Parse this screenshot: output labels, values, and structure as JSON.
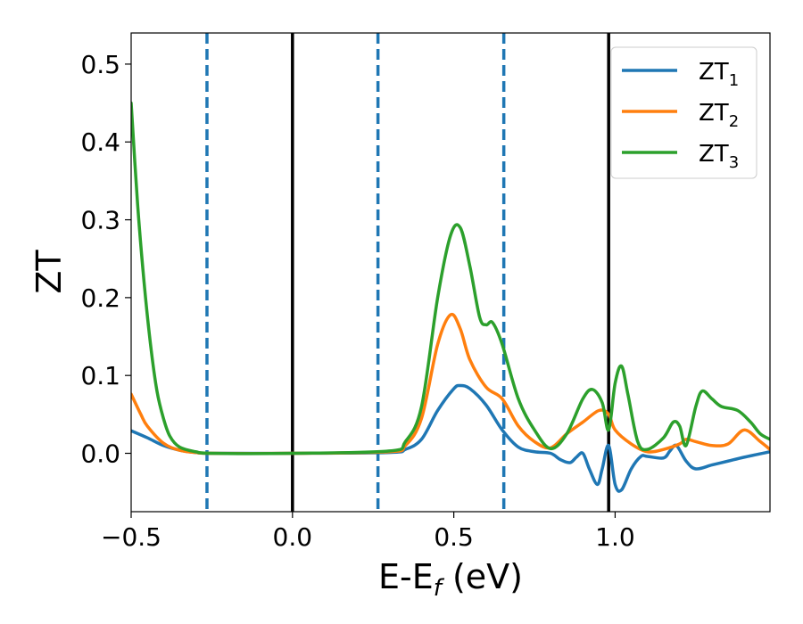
{
  "chart_data": {
    "type": "line",
    "title": "",
    "xlabel": {
      "base": "E-E",
      "sub": "f",
      "suffix": " (eV)"
    },
    "ylabel": "ZT",
    "xlim": [
      -0.5,
      1.48
    ],
    "ylim": [
      -0.075,
      0.54
    ],
    "x_ticks": [
      -0.5,
      0.0,
      0.5,
      1.0
    ],
    "x_tick_labels": [
      "−0.5",
      "0.0",
      "0.5",
      "1.0"
    ],
    "y_ticks": [
      0.0,
      0.1,
      0.2,
      0.3,
      0.4,
      0.5
    ],
    "y_tick_labels": [
      "0.0",
      "0.1",
      "0.2",
      "0.3",
      "0.4",
      "0.5"
    ],
    "grid": false,
    "legend_position": "top-right",
    "vertical_lines": [
      {
        "x": -0.265,
        "style": "dashed",
        "color": "#1f77b4"
      },
      {
        "x": 0.0,
        "style": "solid",
        "color": "#000000"
      },
      {
        "x": 0.265,
        "style": "dashed",
        "color": "#1f77b4"
      },
      {
        "x": 0.655,
        "style": "dashed",
        "color": "#1f77b4"
      },
      {
        "x": 0.98,
        "style": "solid",
        "color": "#000000"
      }
    ],
    "series": [
      {
        "name": "ZT1",
        "label_base": "ZT",
        "label_sub": "1",
        "color": "#1f77b4",
        "points": [
          [
            -0.5,
            0.029
          ],
          [
            -0.45,
            0.02
          ],
          [
            -0.4,
            0.01
          ],
          [
            -0.35,
            0.004
          ],
          [
            -0.3,
            0.001
          ],
          [
            -0.25,
            0.0
          ],
          [
            0.0,
            0.0
          ],
          [
            0.3,
            0.001
          ],
          [
            0.35,
            0.005
          ],
          [
            0.4,
            0.018
          ],
          [
            0.45,
            0.055
          ],
          [
            0.5,
            0.083
          ],
          [
            0.52,
            0.087
          ],
          [
            0.55,
            0.083
          ],
          [
            0.6,
            0.062
          ],
          [
            0.65,
            0.03
          ],
          [
            0.7,
            0.008
          ],
          [
            0.75,
            0.002
          ],
          [
            0.8,
            0.0
          ],
          [
            0.83,
            -0.008
          ],
          [
            0.86,
            -0.012
          ],
          [
            0.88,
            -0.005
          ],
          [
            0.9,
            0.0
          ],
          [
            0.92,
            -0.02
          ],
          [
            0.945,
            -0.04
          ],
          [
            0.96,
            -0.02
          ],
          [
            0.98,
            0.01
          ],
          [
            1.0,
            -0.04
          ],
          [
            1.02,
            -0.047
          ],
          [
            1.05,
            -0.02
          ],
          [
            1.08,
            -0.004
          ],
          [
            1.1,
            -0.004
          ],
          [
            1.15,
            -0.006
          ],
          [
            1.17,
            0.003
          ],
          [
            1.19,
            0.01
          ],
          [
            1.22,
            -0.01
          ],
          [
            1.25,
            -0.02
          ],
          [
            1.3,
            -0.015
          ],
          [
            1.35,
            -0.01
          ],
          [
            1.4,
            -0.005
          ],
          [
            1.48,
            0.002
          ]
        ]
      },
      {
        "name": "ZT2",
        "label_base": "ZT",
        "label_sub": "2",
        "color": "#ff7f0e",
        "points": [
          [
            -0.5,
            0.076
          ],
          [
            -0.47,
            0.05
          ],
          [
            -0.45,
            0.035
          ],
          [
            -0.4,
            0.013
          ],
          [
            -0.35,
            0.004
          ],
          [
            -0.3,
            0.001
          ],
          [
            -0.25,
            0.0
          ],
          [
            0.0,
            0.0
          ],
          [
            0.3,
            0.002
          ],
          [
            0.35,
            0.01
          ],
          [
            0.4,
            0.045
          ],
          [
            0.45,
            0.14
          ],
          [
            0.49,
            0.178
          ],
          [
            0.52,
            0.16
          ],
          [
            0.55,
            0.12
          ],
          [
            0.6,
            0.085
          ],
          [
            0.65,
            0.07
          ],
          [
            0.7,
            0.035
          ],
          [
            0.75,
            0.015
          ],
          [
            0.8,
            0.007
          ],
          [
            0.85,
            0.025
          ],
          [
            0.9,
            0.04
          ],
          [
            0.95,
            0.055
          ],
          [
            0.98,
            0.05
          ],
          [
            1.0,
            0.03
          ],
          [
            1.05,
            0.012
          ],
          [
            1.1,
            0.002
          ],
          [
            1.15,
            0.005
          ],
          [
            1.2,
            0.012
          ],
          [
            1.22,
            0.018
          ],
          [
            1.25,
            0.015
          ],
          [
            1.3,
            0.01
          ],
          [
            1.35,
            0.012
          ],
          [
            1.4,
            0.03
          ],
          [
            1.45,
            0.015
          ],
          [
            1.48,
            0.005
          ]
        ]
      },
      {
        "name": "ZT3",
        "label_base": "ZT",
        "label_sub": "3",
        "color": "#2ca02c",
        "points": [
          [
            -0.5,
            0.45
          ],
          [
            -0.48,
            0.32
          ],
          [
            -0.46,
            0.22
          ],
          [
            -0.44,
            0.14
          ],
          [
            -0.42,
            0.08
          ],
          [
            -0.4,
            0.045
          ],
          [
            -0.38,
            0.022
          ],
          [
            -0.35,
            0.008
          ],
          [
            -0.3,
            0.002
          ],
          [
            -0.25,
            0.0
          ],
          [
            0.0,
            0.0
          ],
          [
            0.3,
            0.003
          ],
          [
            0.35,
            0.015
          ],
          [
            0.4,
            0.06
          ],
          [
            0.45,
            0.2
          ],
          [
            0.49,
            0.28
          ],
          [
            0.52,
            0.29
          ],
          [
            0.55,
            0.24
          ],
          [
            0.58,
            0.175
          ],
          [
            0.6,
            0.165
          ],
          [
            0.62,
            0.168
          ],
          [
            0.65,
            0.14
          ],
          [
            0.7,
            0.07
          ],
          [
            0.75,
            0.03
          ],
          [
            0.8,
            0.006
          ],
          [
            0.85,
            0.025
          ],
          [
            0.9,
            0.07
          ],
          [
            0.93,
            0.082
          ],
          [
            0.96,
            0.065
          ],
          [
            0.98,
            0.03
          ],
          [
            1.0,
            0.09
          ],
          [
            1.02,
            0.112
          ],
          [
            1.04,
            0.075
          ],
          [
            1.07,
            0.015
          ],
          [
            1.1,
            0.005
          ],
          [
            1.15,
            0.02
          ],
          [
            1.18,
            0.04
          ],
          [
            1.2,
            0.035
          ],
          [
            1.22,
            0.01
          ],
          [
            1.25,
            0.06
          ],
          [
            1.27,
            0.08
          ],
          [
            1.3,
            0.07
          ],
          [
            1.33,
            0.06
          ],
          [
            1.38,
            0.055
          ],
          [
            1.42,
            0.04
          ],
          [
            1.45,
            0.025
          ],
          [
            1.48,
            0.018
          ]
        ]
      }
    ]
  }
}
